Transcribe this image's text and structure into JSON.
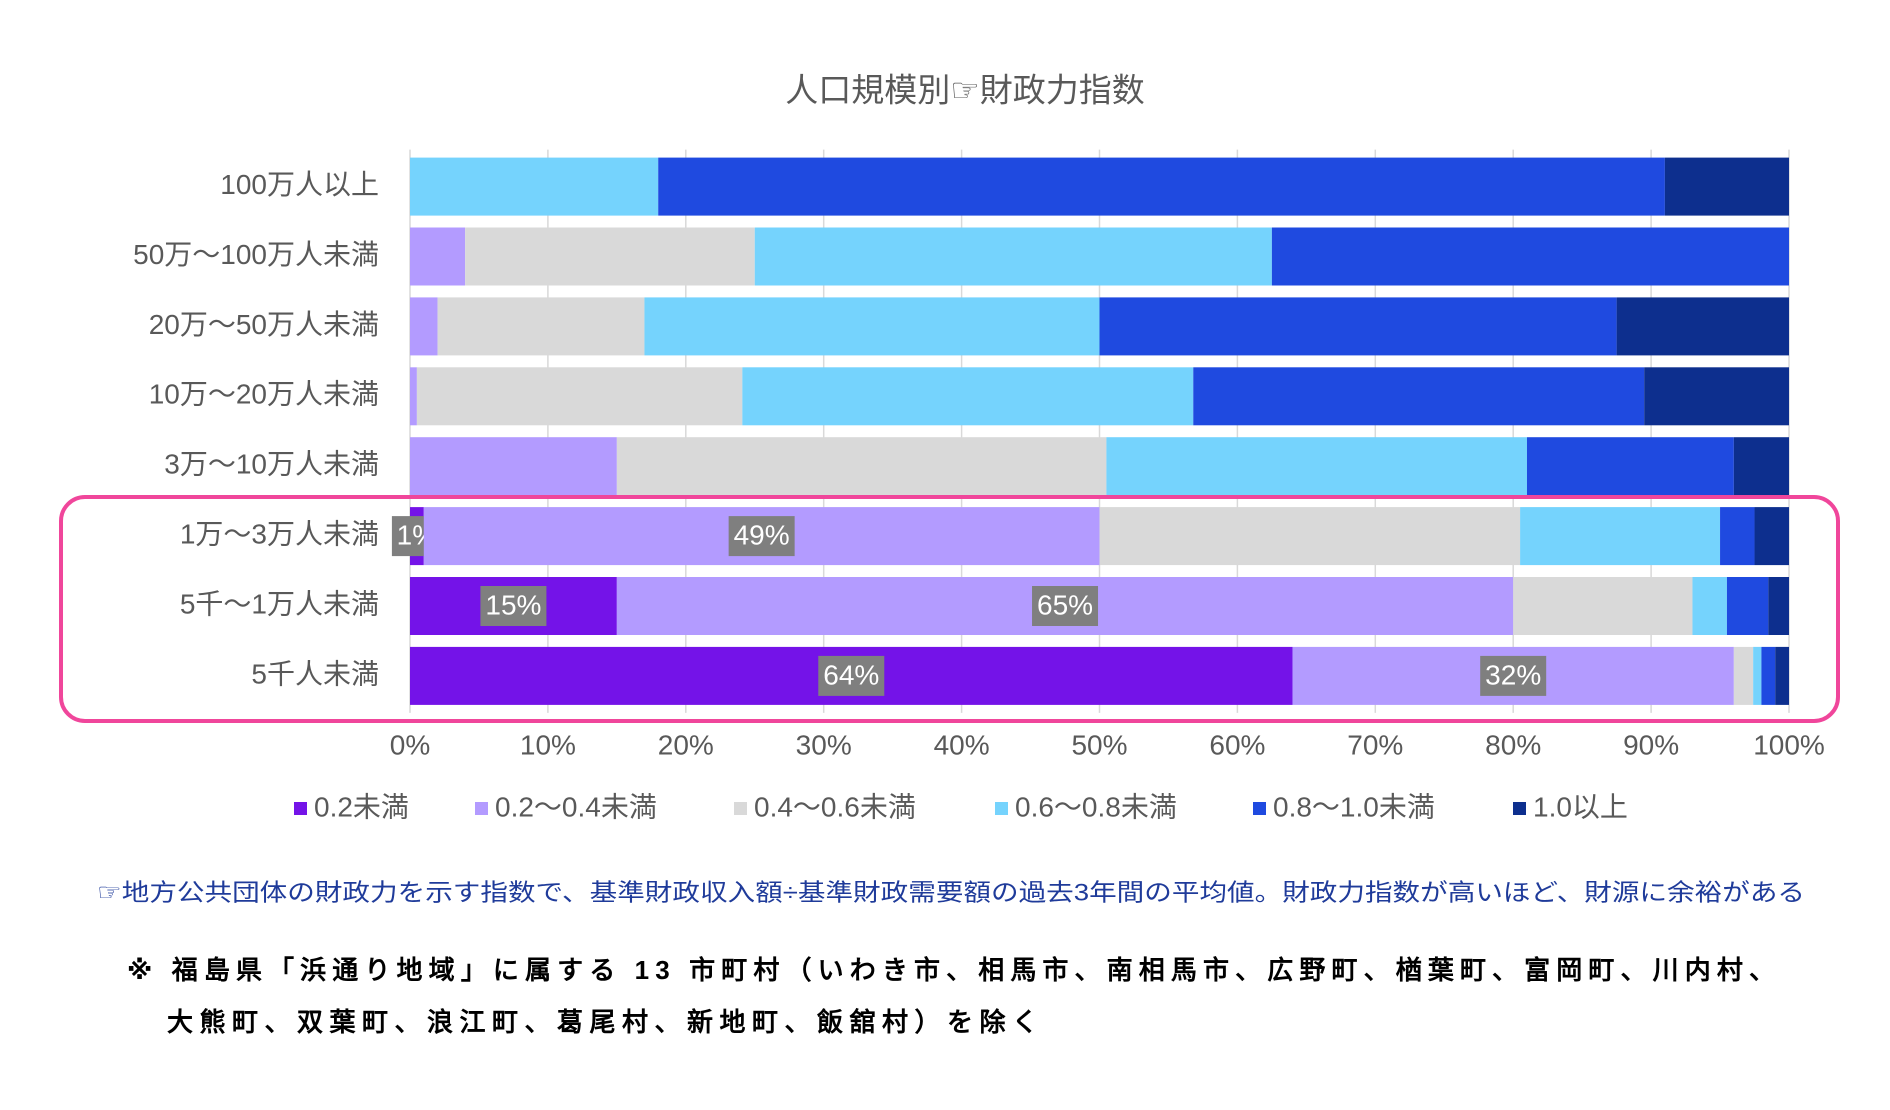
{
  "chart_data": {
    "type": "stacked-bar-horizontal",
    "title": "人口規模別☞財政力指数",
    "categories": [
      "100万人以上",
      "50万～100万人未満",
      "20万～50万人未満",
      "10万～20万人未満",
      "3万～10万人未満",
      "1万～3万人未満",
      "5千～1万人未満",
      "5千人未満"
    ],
    "series": [
      {
        "name": "0.2未満",
        "color": "#7413e8",
        "values": [
          0,
          0,
          0,
          0,
          0,
          1,
          15,
          64
        ],
        "value_labels": [
          null,
          null,
          null,
          null,
          null,
          "1%",
          "15%",
          "64%"
        ]
      },
      {
        "name": "0.2～0.4未満",
        "color": "#b39bff",
        "values": [
          0,
          4,
          2,
          0.5,
          15,
          49,
          65,
          32
        ],
        "value_labels": [
          null,
          null,
          null,
          null,
          null,
          "49%",
          "65%",
          "32%"
        ]
      },
      {
        "name": "0.4～0.6未満",
        "color": "#d9d9d9",
        "values": [
          0,
          21,
          15,
          23.6,
          35.5,
          30.5,
          13,
          1.4
        ]
      },
      {
        "name": "0.6～0.8未満",
        "color": "#75d3fd",
        "values": [
          18,
          37.5,
          33,
          32.7,
          30.5,
          14.5,
          2.5,
          0.6
        ]
      },
      {
        "name": "0.8～1.0未満",
        "color": "#1f4ae0",
        "values": [
          73,
          37.5,
          37.5,
          32.7,
          15,
          2.5,
          3,
          1
        ]
      },
      {
        "name": "1.0以上",
        "color": "#0d2f8e",
        "values": [
          9,
          0,
          12.5,
          10.5,
          4,
          2.5,
          1.5,
          1
        ]
      }
    ],
    "xlim": [
      0,
      100
    ],
    "xticks": [
      {
        "value": 0,
        "label": "0%"
      },
      {
        "value": 10,
        "label": "10%"
      },
      {
        "value": 20,
        "label": "20%"
      },
      {
        "value": 30,
        "label": "30%"
      },
      {
        "value": 40,
        "label": "40%"
      },
      {
        "value": 50,
        "label": "50%"
      },
      {
        "value": 60,
        "label": "60%"
      },
      {
        "value": 70,
        "label": "70%"
      },
      {
        "value": 80,
        "label": "80%"
      },
      {
        "value": 90,
        "label": "90%"
      },
      {
        "value": 100,
        "label": "100%"
      }
    ],
    "grid": true,
    "legend": "bottom",
    "notes": [
      "☞地方公共団体の財政力を示す指数で、基準財政収入額÷基準財政需要額の過去3年間の平均値。財政力指数が高いほど、財源に余裕がある",
      "※ 福島県「浜通り地域」に属する 13 市町村（いわき市、相馬市、南相馬市、広野町、楢葉町、富岡町、川内村、",
      "大熊町、双葉町、浪江町、葛尾村、新地町、飯舘村）を除く"
    ]
  }
}
